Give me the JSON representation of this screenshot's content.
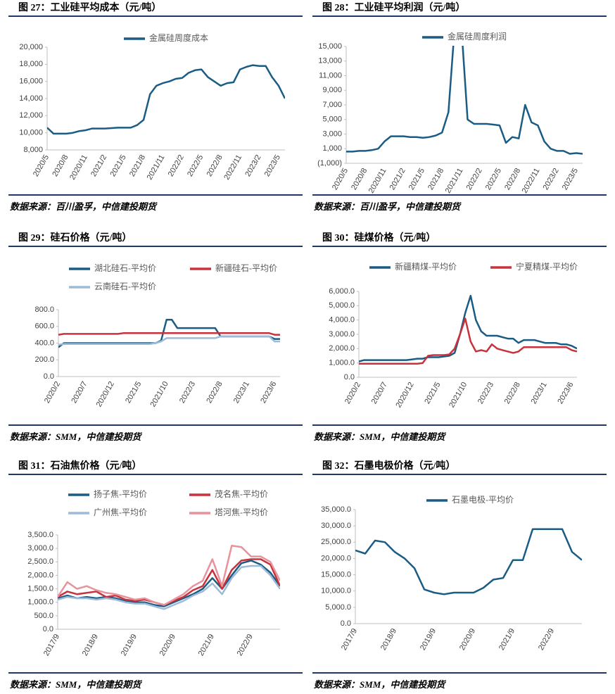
{
  "chart_data": [
    {
      "type": "line",
      "title": "图 27：工业硅平均成本（元/吨）",
      "source": "数据来源：百川盈孚，中信建投期货",
      "categories": [
        "2020/5",
        null,
        null,
        "2020/8",
        null,
        null,
        "2020/11",
        null,
        null,
        "2021/2",
        null,
        null,
        "2021/5",
        null,
        null,
        "2021/8",
        null,
        null,
        "2021/11",
        null,
        null,
        "2022/2",
        null,
        null,
        "2022/5",
        null,
        null,
        "2022/8",
        null,
        null,
        "2022/11",
        null,
        null,
        "2023/2",
        null,
        null,
        "2023/5",
        null
      ],
      "series": [
        {
          "name": "金属硅周度成本",
          "color": "#1b5c85",
          "values": [
            10600,
            9900,
            9900,
            9900,
            10000,
            10200,
            10300,
            10500,
            10500,
            10500,
            10550,
            10600,
            10600,
            10600,
            10900,
            11500,
            14500,
            15500,
            15800,
            16000,
            16300,
            16400,
            17000,
            17300,
            17400,
            16500,
            16000,
            15500,
            15800,
            15900,
            17400,
            17700,
            17900,
            17800,
            17800,
            16500,
            15500,
            14000
          ]
        }
      ],
      "ylim": [
        8000,
        20000
      ],
      "yticks": [
        {
          "value": 8000,
          "label": "8,000"
        },
        {
          "value": 10000,
          "label": "10,000"
        },
        {
          "value": 12000,
          "label": "12,000"
        },
        {
          "value": 14000,
          "label": "14,000"
        },
        {
          "value": 16000,
          "label": "16,000"
        },
        {
          "value": 18000,
          "label": "18,000"
        },
        {
          "value": 20000,
          "label": "20,000"
        }
      ]
    },
    {
      "type": "line",
      "title": "图 28：工业硅平均利润（元/吨）",
      "source": "数据来源：百川盈孚，中信建投期货",
      "categories": [
        "2020/5",
        null,
        null,
        "2020/8",
        null,
        null,
        "2020/11",
        null,
        null,
        "2021/2",
        null,
        null,
        "2021/5",
        null,
        null,
        "2021/8",
        null,
        null,
        "2021/11",
        null,
        null,
        "2022/2",
        null,
        null,
        "2022/5",
        null,
        null,
        "2022/8",
        null,
        null,
        "2022/11",
        null,
        null,
        "2023/2",
        null,
        null,
        "2023/5",
        null
      ],
      "series": [
        {
          "name": "金属硅周度利润",
          "color": "#1b5c85",
          "values": [
            600,
            600,
            700,
            700,
            800,
            1000,
            2000,
            2700,
            2700,
            2700,
            2600,
            2600,
            2500,
            2600,
            2800,
            3200,
            6000,
            18000,
            18000,
            5000,
            4400,
            4400,
            4400,
            4300,
            4200,
            1800,
            2600,
            2400,
            7000,
            4600,
            4200,
            2000,
            1000,
            700,
            700,
            300,
            400,
            300
          ]
        }
      ],
      "ylim": [
        -1000,
        15000
      ],
      "negative_tick_color": "#c00000",
      "yticks": [
        {
          "value": -1000,
          "label": "(1,000)"
        },
        {
          "value": 1000,
          "label": "1,000"
        },
        {
          "value": 3000,
          "label": "3,000"
        },
        {
          "value": 5000,
          "label": "5,000"
        },
        {
          "value": 7000,
          "label": "7,000"
        },
        {
          "value": 9000,
          "label": "9,000"
        },
        {
          "value": 11000,
          "label": "11,000"
        },
        {
          "value": 13000,
          "label": "13,000"
        },
        {
          "value": 15000,
          "label": "15,000"
        }
      ]
    },
    {
      "type": "line",
      "title": "图 29：硅石价格（元/吨）",
      "source": "数据来源：SMM，中信建投期货",
      "categories": [
        "2020/2",
        null,
        null,
        null,
        null,
        "2020/7",
        null,
        null,
        null,
        null,
        "2020/12",
        null,
        null,
        null,
        null,
        "2021/5",
        null,
        null,
        null,
        null,
        "2021/10",
        null,
        null,
        null,
        null,
        "2022/3",
        null,
        null,
        null,
        null,
        "2022/8",
        null,
        null,
        null,
        null,
        "2023/1",
        null,
        null,
        null,
        null,
        "2023/6",
        null
      ],
      "series": [
        {
          "name": "湖北硅石-平均价",
          "color": "#1b5c85",
          "values": [
            350,
            400,
            400,
            400,
            400,
            400,
            400,
            400,
            400,
            400,
            400,
            400,
            400,
            400,
            400,
            400,
            400,
            400,
            400,
            430,
            680,
            680,
            580,
            580,
            580,
            580,
            580,
            580,
            580,
            580,
            480,
            480,
            480,
            480,
            480,
            480,
            480,
            480,
            480,
            480,
            450,
            450
          ]
        },
        {
          "name": "新疆硅石-平均价",
          "color": "#c8323c",
          "values": [
            500,
            510,
            510,
            510,
            510,
            510,
            510,
            510,
            510,
            510,
            510,
            510,
            520,
            520,
            520,
            520,
            520,
            520,
            520,
            520,
            520,
            520,
            520,
            520,
            520,
            520,
            520,
            520,
            520,
            520,
            520,
            520,
            520,
            520,
            520,
            520,
            520,
            520,
            520,
            520,
            500,
            500
          ]
        },
        {
          "name": "云南硅石-平均价",
          "color": "#9dbbd7",
          "values": [
            380,
            390,
            390,
            390,
            390,
            390,
            390,
            390,
            390,
            390,
            390,
            390,
            390,
            390,
            390,
            390,
            390,
            390,
            400,
            420,
            460,
            460,
            460,
            460,
            460,
            460,
            460,
            460,
            460,
            460,
            480,
            480,
            480,
            480,
            480,
            480,
            480,
            480,
            480,
            480,
            420,
            420
          ]
        }
      ],
      "ylim": [
        0,
        800
      ],
      "yticks": [
        {
          "value": 0,
          "label": "0.0"
        },
        {
          "value": 200,
          "label": "200.0"
        },
        {
          "value": 400,
          "label": "400.0"
        },
        {
          "value": 600,
          "label": "600.0"
        },
        {
          "value": 800,
          "label": "800.0"
        }
      ]
    },
    {
      "type": "line",
      "title": "图 30：硅煤价格（元/吨）",
      "source": "数据来源：SMM，中信建投期货",
      "categories": [
        "2020/2",
        null,
        null,
        null,
        null,
        "2020/7",
        null,
        null,
        null,
        null,
        "2020/12",
        null,
        null,
        null,
        null,
        "2021/5",
        null,
        null,
        null,
        null,
        "2021/10",
        null,
        null,
        null,
        null,
        "2022/3",
        null,
        null,
        null,
        null,
        "2022/8",
        null,
        null,
        null,
        null,
        "2023/1",
        null,
        null,
        null,
        null,
        "2023/6",
        null
      ],
      "series": [
        {
          "name": "新疆精煤-平均价",
          "color": "#1b5c85",
          "values": [
            1100,
            1200,
            1200,
            1200,
            1200,
            1200,
            1200,
            1200,
            1200,
            1200,
            1250,
            1300,
            1300,
            1400,
            1400,
            1400,
            1450,
            1500,
            1700,
            3000,
            4500,
            5700,
            4000,
            3200,
            2900,
            2900,
            2900,
            2800,
            2700,
            2700,
            2400,
            2600,
            2600,
            2600,
            2500,
            2400,
            2400,
            2400,
            2300,
            2300,
            2200,
            2000
          ]
        },
        {
          "name": "宁夏精煤-平均价",
          "color": "#c8323c",
          "values": [
            950,
            950,
            950,
            950,
            950,
            950,
            950,
            950,
            950,
            950,
            950,
            950,
            1000,
            1500,
            1550,
            1550,
            1550,
            1600,
            2000,
            3000,
            4100,
            2500,
            1800,
            1900,
            1800,
            2300,
            2000,
            1900,
            1800,
            1700,
            1800,
            2100,
            2100,
            2100,
            2100,
            2100,
            2100,
            2100,
            2100,
            2100,
            1900,
            1800
          ]
        }
      ],
      "ylim": [
        0,
        6000
      ],
      "yticks": [
        {
          "value": 0,
          "label": "0.0"
        },
        {
          "value": 1000,
          "label": "1,000.0"
        },
        {
          "value": 2000,
          "label": "2,000.0"
        },
        {
          "value": 3000,
          "label": "3,000.0"
        },
        {
          "value": 4000,
          "label": "4,000.0"
        },
        {
          "value": 5000,
          "label": "5,000.0"
        },
        {
          "value": 6000,
          "label": "6,000.0"
        }
      ]
    },
    {
      "type": "line",
      "title": "图 31：石油焦价格（元/吨）",
      "source": "数据来源：SMM，中信建投期货",
      "categories": [
        "2017/9",
        null,
        null,
        null,
        "2018/9",
        null,
        null,
        null,
        "2019/9",
        null,
        null,
        null,
        "2020/9",
        null,
        null,
        null,
        "2021/9",
        null,
        null,
        null,
        "2022/9",
        null,
        null,
        null
      ],
      "series": [
        {
          "name": "扬子焦-平均价",
          "color": "#1b5c85",
          "values": [
            1150,
            1250,
            1150,
            1200,
            1150,
            1200,
            1150,
            1050,
            1000,
            1000,
            900,
            850,
            1000,
            1150,
            1300,
            1500,
            1900,
            1500,
            2000,
            2450,
            2550,
            2400,
            2100,
            1600
          ]
        },
        {
          "name": "茂名焦-平均价",
          "color": "#c8323c",
          "values": [
            1200,
            1400,
            1300,
            1350,
            1400,
            1200,
            1250,
            1100,
            1050,
            1100,
            1000,
            900,
            1050,
            1200,
            1450,
            1600,
            2200,
            1500,
            2200,
            2550,
            2600,
            2600,
            2400,
            1600
          ]
        },
        {
          "name": "广州焦-平均价",
          "color": "#9dbbd7",
          "values": [
            1100,
            1200,
            1150,
            1150,
            1100,
            1150,
            1100,
            1000,
            950,
            950,
            850,
            750,
            900,
            1050,
            1250,
            1400,
            1700,
            1300,
            1900,
            2300,
            2350,
            2350,
            2000,
            1500
          ]
        },
        {
          "name": "塔河焦-平均价",
          "color": "#e8929c",
          "values": [
            1200,
            1750,
            1500,
            1600,
            1450,
            1350,
            1300,
            1200,
            1100,
            1150,
            1000,
            900,
            1100,
            1300,
            1600,
            1800,
            2600,
            1600,
            3100,
            3050,
            2700,
            2700,
            2500,
            1800
          ]
        }
      ],
      "ylim": [
        0,
        3500
      ],
      "yticks": [
        {
          "value": 0,
          "label": "0.0"
        },
        {
          "value": 500,
          "label": "500.0"
        },
        {
          "value": 1000,
          "label": "1,000.0"
        },
        {
          "value": 1500,
          "label": "1,500.0"
        },
        {
          "value": 2000,
          "label": "2,000.0"
        },
        {
          "value": 2500,
          "label": "2,500.0"
        },
        {
          "value": 3000,
          "label": "3,000.0"
        },
        {
          "value": 3500,
          "label": "3,500.0"
        }
      ]
    },
    {
      "type": "line",
      "title": "图 32：石墨电极价格（元/吨）",
      "source": "数据来源：SMM，中信建投期货",
      "categories": [
        "2017/9",
        null,
        null,
        null,
        "2018/9",
        null,
        null,
        null,
        "2019/9",
        null,
        null,
        null,
        "2020/9",
        null,
        null,
        null,
        "2021/9",
        null,
        null,
        null,
        "2022/9",
        null,
        null,
        null
      ],
      "series": [
        {
          "name": "石墨电极-平均价",
          "color": "#1b5c85",
          "values": [
            22500,
            21500,
            25500,
            25000,
            22000,
            20000,
            17000,
            10500,
            9500,
            9000,
            9500,
            9500,
            9500,
            11000,
            13500,
            14000,
            19500,
            19500,
            29000,
            29000,
            29000,
            29000,
            22000,
            19500
          ]
        }
      ],
      "ylim": [
        0,
        35000
      ],
      "yticks": [
        {
          "value": 0,
          "label": "0.0"
        },
        {
          "value": 5000,
          "label": "5,000.0"
        },
        {
          "value": 10000,
          "label": "10,000.0"
        },
        {
          "value": 15000,
          "label": "15,000.0"
        },
        {
          "value": 20000,
          "label": "20,000.0"
        },
        {
          "value": 25000,
          "label": "25,000.0"
        },
        {
          "value": 30000,
          "label": "30,000.0"
        },
        {
          "value": 35000,
          "label": "35,000.0"
        }
      ]
    }
  ]
}
